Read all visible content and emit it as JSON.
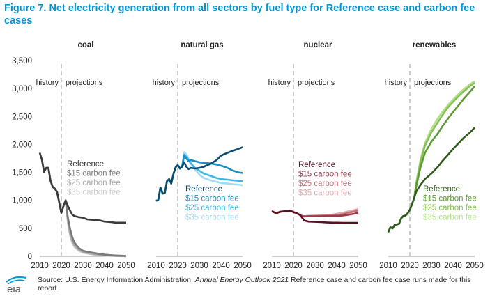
{
  "title": "Figure 7. Net electricity generation from all sectors by fuel type for Reference case and carbon fee cases",
  "source": {
    "prefix": "Source: U.S. Energy Information Administration, ",
    "italic": "Annual Energy Outlook 2021",
    "suffix": " Reference case and carbon fee case runs made for this report"
  },
  "logo_text": "eia",
  "history_label": "history",
  "projections_label": "projections",
  "colors": {
    "coal": [
      "#3a3a3a",
      "#7a7a7a",
      "#a8a8a8",
      "#cccccc"
    ],
    "natural gas": [
      "#0b4c6e",
      "#1a8fc4",
      "#3bb8e6",
      "#9fdcf3"
    ],
    "nuclear": [
      "#5a1020",
      "#9b3a4a",
      "#c46e76",
      "#e2aaad"
    ],
    "renewables": [
      "#2f5a1c",
      "#5d9a35",
      "#86c054",
      "#b6df8c"
    ]
  },
  "chart_data": {
    "type": "line",
    "ylim": [
      0,
      3500
    ],
    "yticks": [
      0,
      500,
      1000,
      1500,
      2000,
      2500,
      3000,
      3500
    ],
    "ytick_labels": [
      "0",
      "500",
      "1,000",
      "1,500",
      "2,000",
      "2,500",
      "3,000",
      "3,500"
    ],
    "xlim": [
      2010,
      2050
    ],
    "xticks": [
      2010,
      2020,
      2030,
      2040,
      2050
    ],
    "history_end": 2020,
    "grid": false,
    "panels": [
      {
        "title": "coal",
        "series": [
          {
            "name": "Reference",
            "x": [
              2010,
              2011,
              2012,
              2013,
              2014,
              2015,
              2016,
              2017,
              2018,
              2019,
              2020,
              2021,
              2022,
              2023,
              2024,
              2025,
              2026,
              2028,
              2030,
              2032,
              2035,
              2038,
              2040,
              2043,
              2045,
              2048,
              2050
            ],
            "y": [
              1850,
              1730,
              1510,
              1580,
              1580,
              1350,
              1240,
              1210,
              1150,
              965,
              775,
              900,
              1000,
              900,
              820,
              750,
              720,
              700,
              690,
              660,
              650,
              640,
              620,
              610,
              600,
              600,
              600
            ]
          },
          {
            "name": "$15 carbon fee",
            "x": [
              2010,
              2011,
              2012,
              2013,
              2014,
              2015,
              2016,
              2017,
              2018,
              2019,
              2020,
              2021,
              2022,
              2023,
              2024,
              2025,
              2026,
              2028,
              2030,
              2032,
              2035,
              2038,
              2040,
              2043,
              2045,
              2048,
              2050
            ],
            "y": [
              1850,
              1730,
              1510,
              1580,
              1580,
              1350,
              1240,
              1210,
              1150,
              965,
              775,
              900,
              1000,
              700,
              500,
              350,
              250,
              150,
              100,
              80,
              60,
              40,
              30,
              20,
              15,
              10,
              5
            ]
          },
          {
            "name": "$25 carbon fee",
            "x": [
              2010,
              2011,
              2012,
              2013,
              2014,
              2015,
              2016,
              2017,
              2018,
              2019,
              2020,
              2021,
              2022,
              2023,
              2024,
              2025,
              2026,
              2028,
              2030,
              2032,
              2035,
              2038,
              2040,
              2043,
              2045,
              2048,
              2050
            ],
            "y": [
              1850,
              1730,
              1510,
              1580,
              1580,
              1350,
              1240,
              1210,
              1150,
              965,
              775,
              900,
              1000,
              650,
              420,
              280,
              200,
              120,
              80,
              60,
              40,
              25,
              20,
              12,
              8,
              5,
              2
            ]
          },
          {
            "name": "$35 carbon fee",
            "x": [
              2010,
              2011,
              2012,
              2013,
              2014,
              2015,
              2016,
              2017,
              2018,
              2019,
              2020,
              2021,
              2022,
              2023,
              2024,
              2025,
              2026,
              2028,
              2030,
              2032,
              2035,
              2038,
              2040,
              2043,
              2045,
              2048,
              2050
            ],
            "y": [
              1850,
              1730,
              1510,
              1580,
              1580,
              1350,
              1240,
              1210,
              1150,
              965,
              775,
              900,
              1000,
              600,
              380,
              240,
              170,
              100,
              65,
              50,
              30,
              18,
              12,
              8,
              5,
              3,
              1
            ]
          }
        ]
      },
      {
        "title": "natural gas",
        "series": [
          {
            "name": "Reference",
            "x": [
              2010,
              2011,
              2012,
              2013,
              2014,
              2015,
              2016,
              2017,
              2018,
              2019,
              2020,
              2021,
              2022,
              2023,
              2024,
              2025,
              2026,
              2028,
              2030,
              2032,
              2035,
              2038,
              2040,
              2043,
              2045,
              2048,
              2050
            ],
            "y": [
              990,
              1010,
              1230,
              1120,
              1130,
              1340,
              1380,
              1300,
              1470,
              1590,
              1630,
              1570,
              1600,
              1680,
              1600,
              1560,
              1580,
              1570,
              1580,
              1600,
              1650,
              1720,
              1800,
              1850,
              1880,
              1920,
              1950
            ]
          },
          {
            "name": "$15 carbon fee",
            "x": [
              2010,
              2011,
              2012,
              2013,
              2014,
              2015,
              2016,
              2017,
              2018,
              2019,
              2020,
              2021,
              2022,
              2023,
              2024,
              2025,
              2026,
              2028,
              2030,
              2032,
              2035,
              2038,
              2040,
              2043,
              2045,
              2048,
              2050
            ],
            "y": [
              990,
              1010,
              1230,
              1120,
              1130,
              1340,
              1380,
              1300,
              1470,
              1590,
              1630,
              1570,
              1600,
              1800,
              1750,
              1700,
              1720,
              1700,
              1680,
              1670,
              1660,
              1640,
              1620,
              1580,
              1540,
              1500,
              1490
            ]
          },
          {
            "name": "$25 carbon fee",
            "x": [
              2010,
              2011,
              2012,
              2013,
              2014,
              2015,
              2016,
              2017,
              2018,
              2019,
              2020,
              2021,
              2022,
              2023,
              2024,
              2025,
              2026,
              2028,
              2030,
              2032,
              2035,
              2038,
              2040,
              2043,
              2045,
              2048,
              2050
            ],
            "y": [
              990,
              1010,
              1230,
              1120,
              1130,
              1340,
              1380,
              1300,
              1470,
              1590,
              1630,
              1570,
              1600,
              1820,
              1780,
              1720,
              1660,
              1580,
              1530,
              1480,
              1440,
              1400,
              1380,
              1370,
              1360,
              1350,
              1340
            ]
          },
          {
            "name": "$35 carbon fee",
            "x": [
              2010,
              2011,
              2012,
              2013,
              2014,
              2015,
              2016,
              2017,
              2018,
              2019,
              2020,
              2021,
              2022,
              2023,
              2024,
              2025,
              2026,
              2028,
              2030,
              2032,
              2035,
              2038,
              2040,
              2043,
              2045,
              2048,
              2050
            ],
            "y": [
              990,
              1010,
              1230,
              1120,
              1130,
              1340,
              1380,
              1300,
              1470,
              1590,
              1630,
              1570,
              1600,
              1860,
              1820,
              1750,
              1680,
              1560,
              1460,
              1400,
              1360,
              1330,
              1310,
              1300,
              1290,
              1280,
              1270
            ]
          }
        ]
      },
      {
        "title": "nuclear",
        "series": [
          {
            "name": "Reference",
            "x": [
              2010,
              2012,
              2014,
              2016,
              2018,
              2019,
              2020,
              2021,
              2022,
              2023,
              2024,
              2025,
              2027,
              2030,
              2033,
              2035,
              2038,
              2040,
              2043,
              2045,
              2048,
              2050
            ],
            "y": [
              807,
              770,
              797,
              805,
              807,
              809,
              790,
              778,
              760,
              740,
              690,
              640,
              620,
              615,
              610,
              605,
              600,
              600,
              598,
              598,
              597,
              597
            ]
          },
          {
            "name": "$15 carbon fee",
            "x": [
              2010,
              2012,
              2014,
              2016,
              2018,
              2019,
              2020,
              2021,
              2022,
              2023,
              2024,
              2025,
              2027,
              2030,
              2033,
              2035,
              2038,
              2040,
              2043,
              2045,
              2048,
              2050
            ],
            "y": [
              807,
              770,
              797,
              805,
              807,
              809,
              790,
              778,
              760,
              740,
              720,
              710,
              715,
              715,
              718,
              720,
              722,
              720,
              730,
              740,
              760,
              780
            ]
          },
          {
            "name": "$25 carbon fee",
            "x": [
              2010,
              2012,
              2014,
              2016,
              2018,
              2019,
              2020,
              2021,
              2022,
              2023,
              2024,
              2025,
              2027,
              2030,
              2033,
              2035,
              2038,
              2040,
              2043,
              2045,
              2048,
              2050
            ],
            "y": [
              807,
              770,
              797,
              805,
              807,
              809,
              790,
              778,
              760,
              740,
              720,
              715,
              720,
              722,
              725,
              728,
              730,
              735,
              755,
              775,
              800,
              820
            ]
          },
          {
            "name": "$35 carbon fee",
            "x": [
              2010,
              2012,
              2014,
              2016,
              2018,
              2019,
              2020,
              2021,
              2022,
              2023,
              2024,
              2025,
              2027,
              2030,
              2033,
              2035,
              2038,
              2040,
              2043,
              2045,
              2048,
              2050
            ],
            "y": [
              807,
              770,
              797,
              805,
              807,
              809,
              790,
              778,
              760,
              740,
              722,
              718,
              725,
              728,
              732,
              738,
              745,
              760,
              780,
              800,
              825,
              850
            ]
          }
        ]
      },
      {
        "title": "renewables",
        "series": [
          {
            "name": "Reference",
            "x": [
              2010,
              2011,
              2012,
              2013,
              2014,
              2015,
              2016,
              2017,
              2018,
              2019,
              2020,
              2021,
              2022,
              2023,
              2025,
              2027,
              2030,
              2033,
              2035,
              2038,
              2040,
              2043,
              2045,
              2048,
              2050
            ],
            "y": [
              430,
              520,
              500,
              560,
              570,
              580,
              680,
              720,
              730,
              770,
              830,
              930,
              1040,
              1160,
              1280,
              1380,
              1480,
              1600,
              1700,
              1830,
              1920,
              2040,
              2120,
              2220,
              2300
            ]
          },
          {
            "name": "$15 carbon fee",
            "x": [
              2010,
              2011,
              2012,
              2013,
              2014,
              2015,
              2016,
              2017,
              2018,
              2019,
              2020,
              2021,
              2022,
              2023,
              2025,
              2027,
              2030,
              2033,
              2035,
              2038,
              2040,
              2043,
              2045,
              2048,
              2050
            ],
            "y": [
              430,
              520,
              500,
              560,
              570,
              580,
              680,
              720,
              730,
              770,
              830,
              930,
              1040,
              1260,
              1600,
              1850,
              2050,
              2200,
              2320,
              2480,
              2580,
              2720,
              2820,
              2950,
              3040
            ]
          },
          {
            "name": "$25 carbon fee",
            "x": [
              2010,
              2011,
              2012,
              2013,
              2014,
              2015,
              2016,
              2017,
              2018,
              2019,
              2020,
              2021,
              2022,
              2023,
              2025,
              2027,
              2030,
              2033,
              2035,
              2038,
              2040,
              2043,
              2045,
              2048,
              2050
            ],
            "y": [
              430,
              520,
              500,
              560,
              570,
              580,
              680,
              720,
              730,
              770,
              830,
              930,
              1040,
              1300,
              1700,
              1980,
              2220,
              2400,
              2520,
              2680,
              2760,
              2880,
              2950,
              3050,
              3100
            ]
          },
          {
            "name": "$35 carbon fee",
            "x": [
              2010,
              2011,
              2012,
              2013,
              2014,
              2015,
              2016,
              2017,
              2018,
              2019,
              2020,
              2021,
              2022,
              2023,
              2025,
              2027,
              2030,
              2033,
              2035,
              2038,
              2040,
              2043,
              2045,
              2048,
              2050
            ],
            "y": [
              430,
              520,
              500,
              560,
              570,
              580,
              680,
              720,
              730,
              770,
              830,
              930,
              1040,
              1330,
              1740,
              2020,
              2280,
              2470,
              2580,
              2720,
              2800,
              2920,
              2990,
              3080,
              3130
            ]
          }
        ]
      }
    ]
  }
}
